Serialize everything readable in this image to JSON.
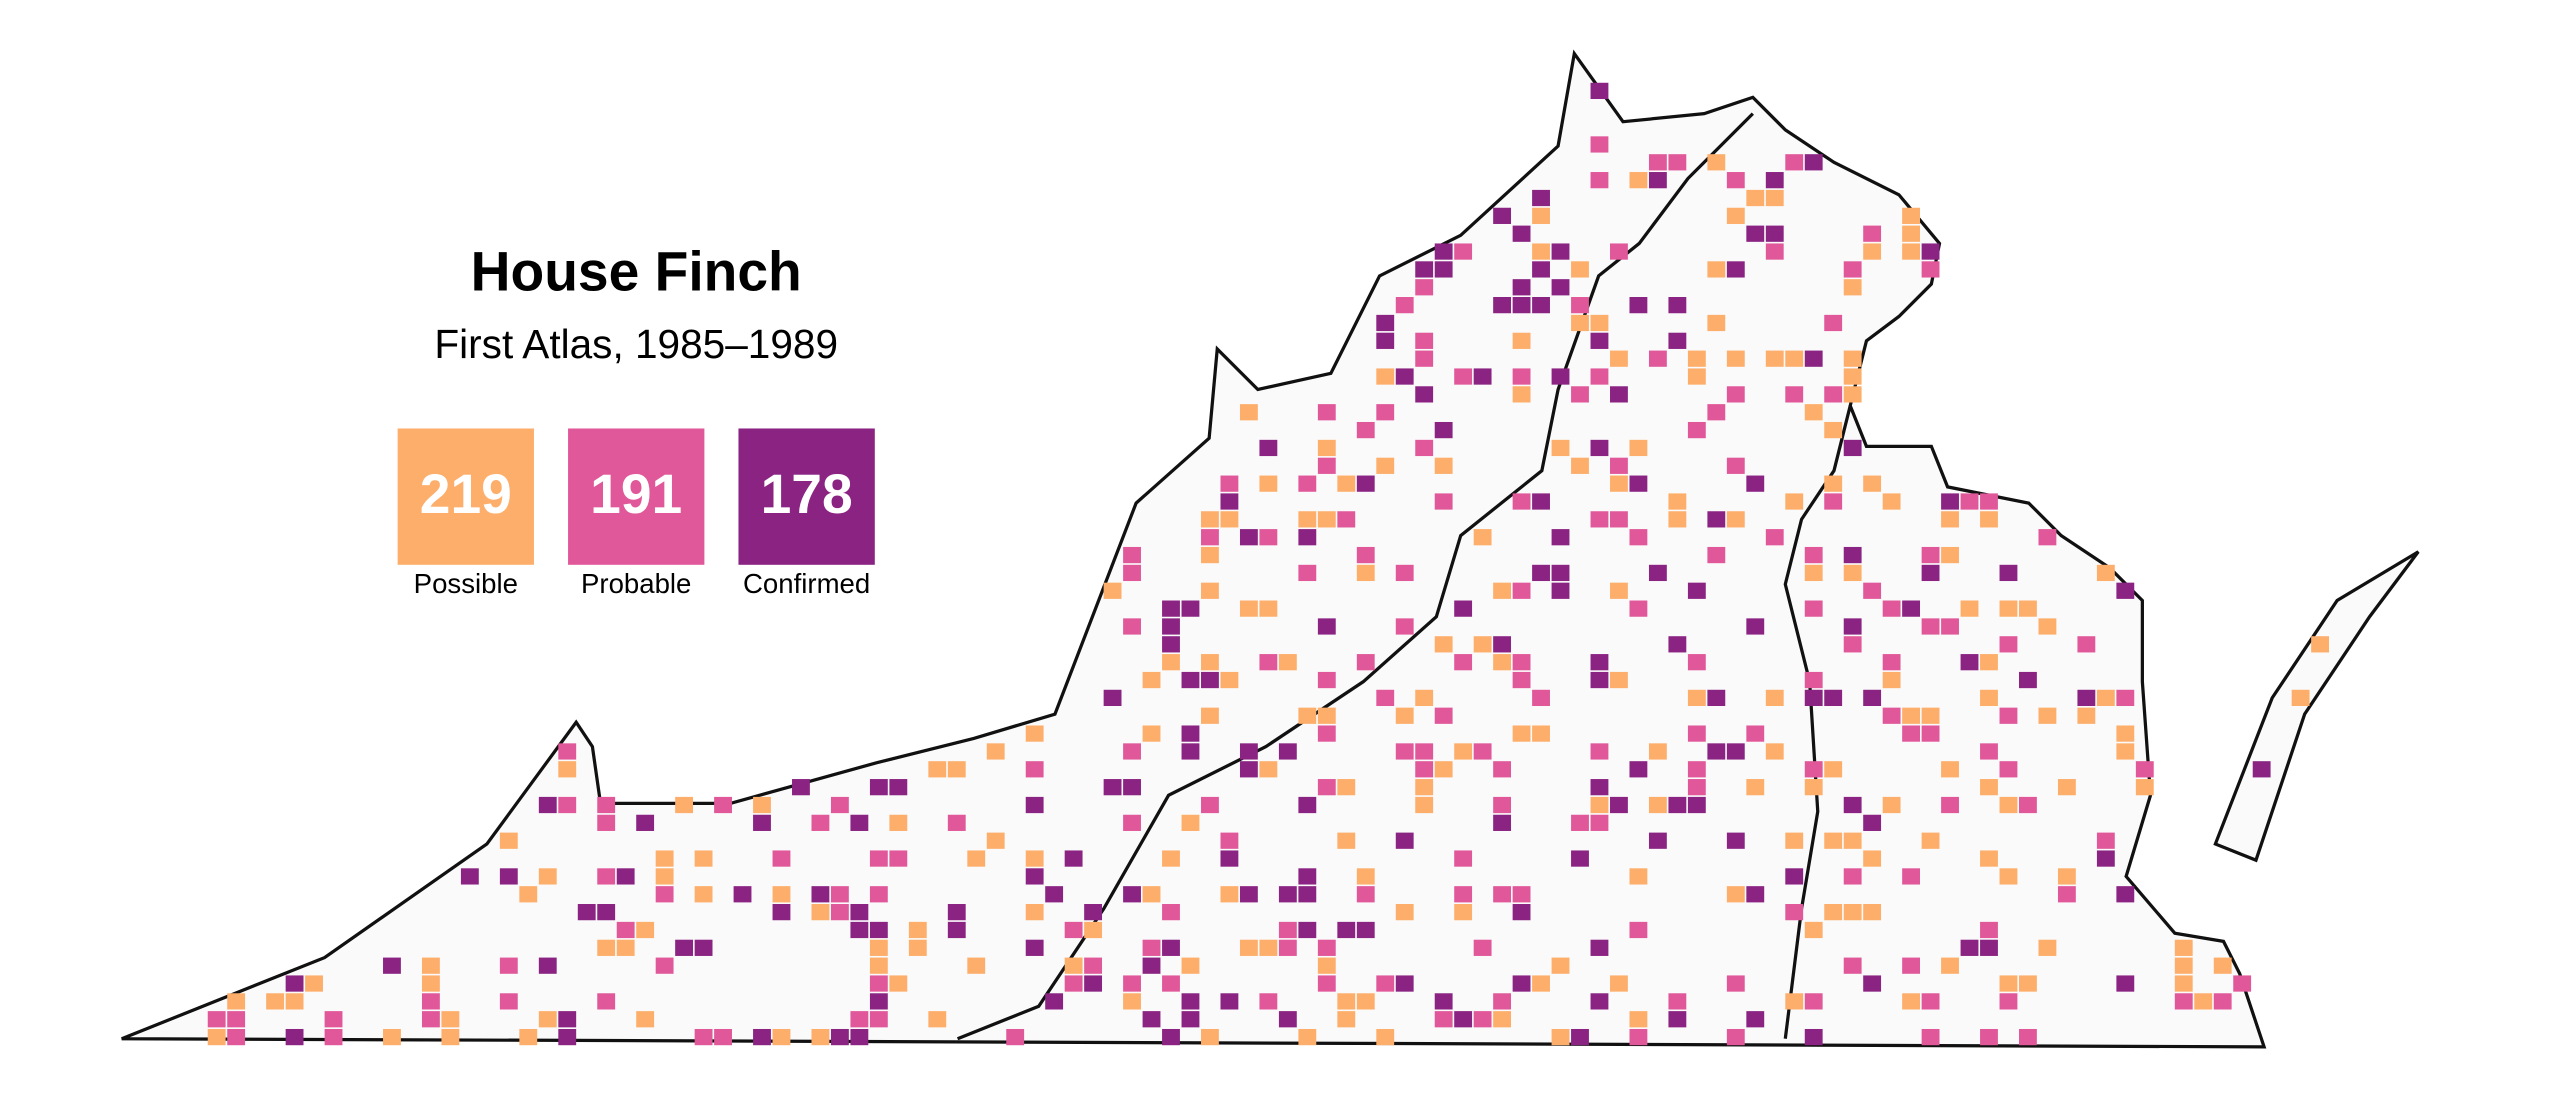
{
  "title": "House Finch",
  "subtitle": "First Atlas, 1985–1989",
  "legend": [
    {
      "value": 219,
      "label": "Possible",
      "color": "#fdae6b"
    },
    {
      "value": 191,
      "label": "Probable",
      "color": "#e0589a"
    },
    {
      "value": 178,
      "label": "Confirmed",
      "color": "#8a2382"
    }
  ]
}
